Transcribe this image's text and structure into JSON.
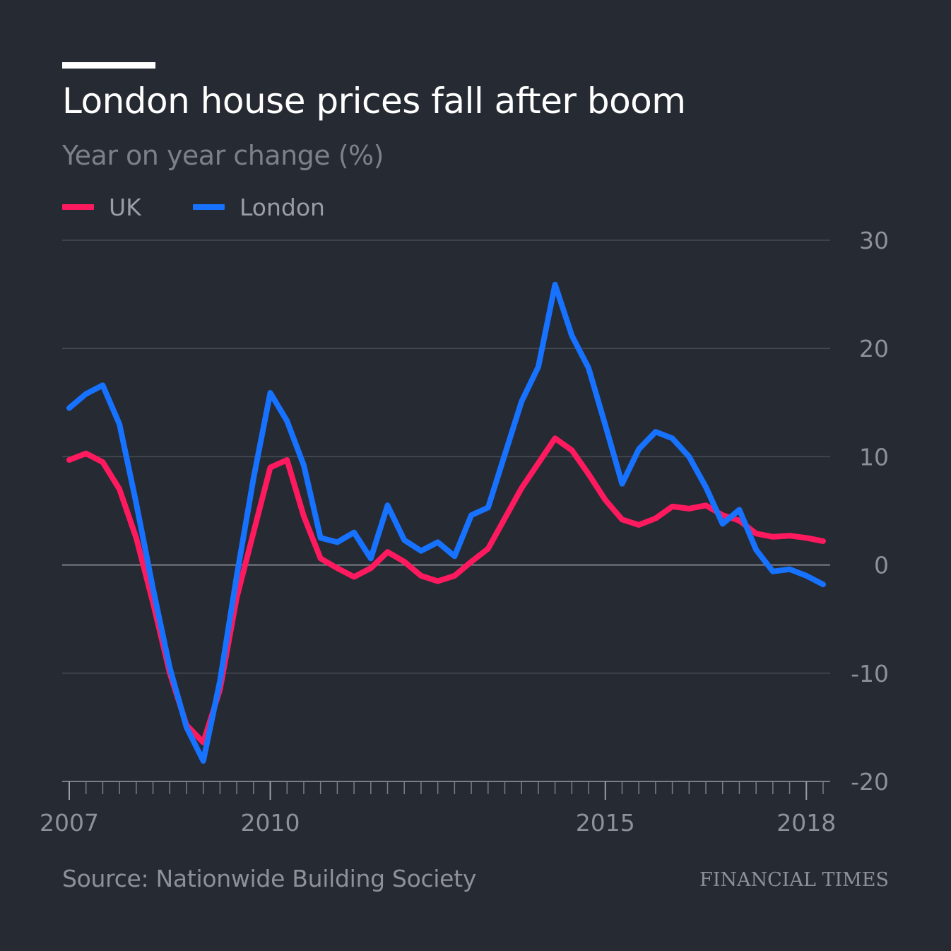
{
  "title": "London house prices fall after boom",
  "subtitle": "Year on year change (%)",
  "source": "Source: Nationwide Building Society",
  "publisher": "FINANCIAL TIMES",
  "legend": [
    {
      "name": "UK",
      "color": "#ff1a5f"
    },
    {
      "name": "London",
      "color": "#1672ff"
    }
  ],
  "chart_data": {
    "type": "line",
    "title": "London house prices fall after boom",
    "subtitle": "Year on year change (%)",
    "xlabel": "",
    "ylabel": "",
    "ylim": [
      -20,
      30
    ],
    "xlim": [
      2007.0,
      2018.25
    ],
    "y_ticks": [
      30,
      20,
      10,
      0,
      -10,
      -20
    ],
    "x_tick_labels": [
      "2007",
      "2010",
      "2015",
      "2018"
    ],
    "x_minor_ticks": "quarterly",
    "grid": "horizontal",
    "y_axis_position": "right",
    "legend_position": "top-left",
    "x": [
      2007.0,
      2007.25,
      2007.5,
      2007.75,
      2008.0,
      2008.25,
      2008.5,
      2008.75,
      2009.0,
      2009.25,
      2009.5,
      2009.75,
      2010.0,
      2010.25,
      2010.5,
      2010.75,
      2011.0,
      2011.25,
      2011.5,
      2011.75,
      2012.0,
      2012.25,
      2012.5,
      2012.75,
      2013.0,
      2013.25,
      2013.5,
      2013.75,
      2014.0,
      2014.25,
      2014.5,
      2014.75,
      2015.0,
      2015.25,
      2015.5,
      2015.75,
      2016.0,
      2016.25,
      2016.5,
      2016.75,
      2017.0,
      2017.25,
      2017.5,
      2017.75,
      2018.0,
      2018.25
    ],
    "series": [
      {
        "name": "UK",
        "color": "#ff1a5f",
        "values": [
          9.7,
          10.3,
          9.5,
          7.0,
          2.5,
          -3.5,
          -10.0,
          -14.8,
          -16.4,
          -11.5,
          -3.0,
          3.0,
          9.0,
          9.7,
          4.5,
          0.6,
          -0.3,
          -1.1,
          -0.3,
          1.2,
          0.3,
          -1.0,
          -1.5,
          -1.0,
          0.3,
          1.5,
          4.3,
          7.1,
          9.4,
          11.7,
          10.6,
          8.4,
          6.0,
          4.2,
          3.7,
          4.3,
          5.4,
          5.2,
          5.5,
          4.6,
          4.1,
          2.9,
          2.6,
          2.7,
          2.5,
          2.2
        ]
      },
      {
        "name": "London",
        "color": "#1672ff",
        "values": [
          14.5,
          15.8,
          16.6,
          13.0,
          5.7,
          -2.2,
          -9.5,
          -15.0,
          -18.1,
          -10.7,
          -1.0,
          8.0,
          15.9,
          13.3,
          9.2,
          2.5,
          2.1,
          3.0,
          0.6,
          5.5,
          2.3,
          1.3,
          2.1,
          0.8,
          4.6,
          5.3,
          10.2,
          15.1,
          18.3,
          25.9,
          21.2,
          18.2,
          12.9,
          7.5,
          10.7,
          12.3,
          11.7,
          10.0,
          7.2,
          3.8,
          5.1,
          1.4,
          -0.6,
          -0.4,
          -1.0,
          -1.8
        ]
      }
    ]
  }
}
